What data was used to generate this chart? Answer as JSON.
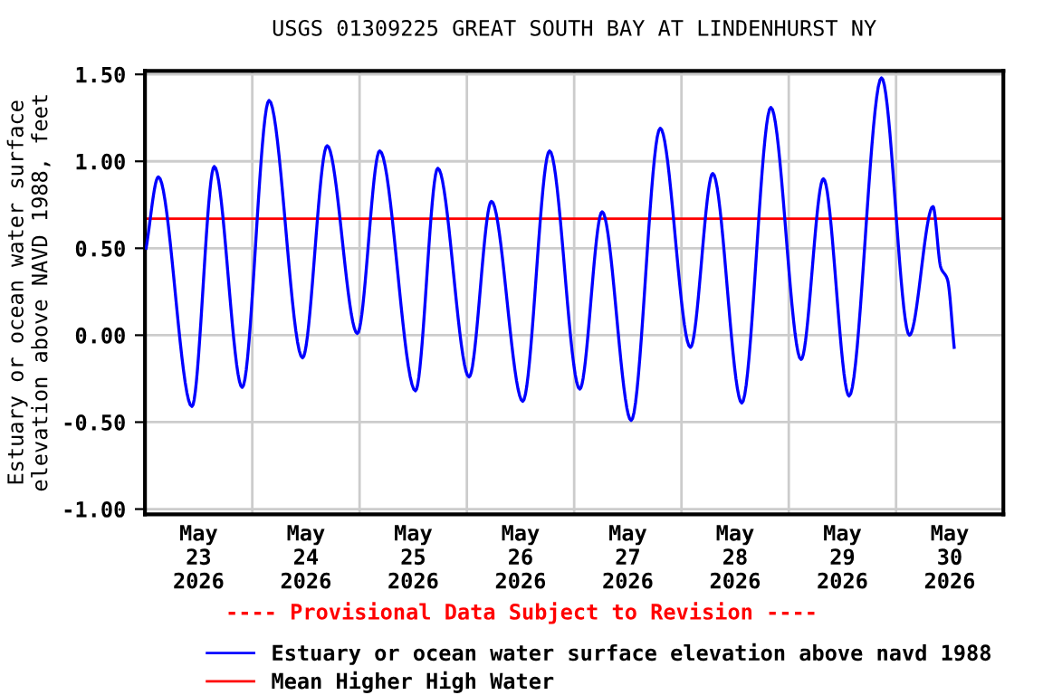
{
  "chart_data": {
    "type": "line",
    "title": "USGS 01309225 GREAT SOUTH BAY AT LINDENHURST NY",
    "ylabel": "Estuary or ocean water surface\nelevation above NAVD 1988, feet",
    "annotations": [
      "---- Provisional Data Subject to Revision ----"
    ],
    "x": [
      "2026-05-23T00:15",
      "2026-05-23T03:00",
      "2026-05-23T10:30",
      "2026-05-23T15:30",
      "2026-05-23T21:45",
      "2026-05-24T03:45",
      "2026-05-24T11:15",
      "2026-05-24T16:45",
      "2026-05-24T23:30",
      "2026-05-25T04:30",
      "2026-05-25T12:30",
      "2026-05-25T17:30",
      "2026-05-26T00:30",
      "2026-05-26T05:30",
      "2026-05-26T12:30",
      "2026-05-26T18:30",
      "2026-05-27T01:15",
      "2026-05-27T06:15",
      "2026-05-27T12:45",
      "2026-05-27T19:15",
      "2026-05-28T02:00",
      "2026-05-28T07:00",
      "2026-05-28T13:30",
      "2026-05-28T20:00",
      "2026-05-29T02:45",
      "2026-05-29T07:45",
      "2026-05-29T13:30",
      "2026-05-29T20:45",
      "2026-05-30T03:00",
      "2026-05-30T08:15",
      "2026-05-30T10:00",
      "2026-05-30T11:30",
      "2026-05-30T13:00"
    ],
    "series": [
      {
        "name": "Estuary or ocean water surface elevation above navd 1988",
        "color": "#0000ff",
        "values": [
          0.5,
          0.91,
          -0.41,
          0.97,
          -0.3,
          1.35,
          -0.13,
          1.09,
          0.01,
          1.06,
          -0.32,
          0.96,
          -0.24,
          0.77,
          -0.38,
          1.06,
          -0.31,
          0.71,
          -0.49,
          1.19,
          -0.07,
          0.93,
          -0.39,
          1.31,
          -0.14,
          0.9,
          -0.35,
          1.48,
          0.0,
          0.74,
          0.39,
          0.32,
          -0.07
        ]
      }
    ],
    "ref_lines": [
      {
        "axis": "y",
        "value": 0.67,
        "label": "Mean Higher High Water",
        "color": "#ff0000"
      }
    ],
    "xlim": [
      "2026-05-23T00:00",
      "2026-05-31T00:00"
    ],
    "xticks": [
      {
        "value": "2026-05-23T00:00",
        "label": null
      },
      {
        "value": "2026-05-24T00:00",
        "label": null
      },
      {
        "value": "2026-05-25T00:00",
        "label": null
      },
      {
        "value": "2026-05-26T00:00",
        "label": null
      },
      {
        "value": "2026-05-27T00:00",
        "label": null
      },
      {
        "value": "2026-05-28T00:00",
        "label": null
      },
      {
        "value": "2026-05-29T00:00",
        "label": null
      },
      {
        "value": "2026-05-30T00:00",
        "label": null
      },
      {
        "value": "2026-05-31T00:00",
        "label": null
      },
      {
        "value": "2026-05-23T12:00",
        "label": "May\n23\n2026"
      },
      {
        "value": "2026-05-24T12:00",
        "label": "May\n24\n2026"
      },
      {
        "value": "2026-05-25T12:00",
        "label": "May\n25\n2026"
      },
      {
        "value": "2026-05-26T12:00",
        "label": "May\n26\n2026"
      },
      {
        "value": "2026-05-27T12:00",
        "label": "May\n27\n2026"
      },
      {
        "value": "2026-05-28T12:00",
        "label": "May\n28\n2026"
      },
      {
        "value": "2026-05-29T12:00",
        "label": "May\n29\n2026"
      },
      {
        "value": "2026-05-30T12:00",
        "label": "May\n30\n2026"
      }
    ],
    "ylim": [
      -1.03,
      1.52
    ],
    "yticks": [
      {
        "value": 1.5,
        "label": "1.50"
      },
      {
        "value": 1.0,
        "label": "1.00"
      },
      {
        "value": 0.5,
        "label": "0.50"
      },
      {
        "value": 0.0,
        "label": "0.00"
      },
      {
        "value": -0.5,
        "label": "-0.50"
      },
      {
        "value": -1.0,
        "label": "-1.00"
      }
    ],
    "grid": true,
    "legend": "bottom"
  }
}
